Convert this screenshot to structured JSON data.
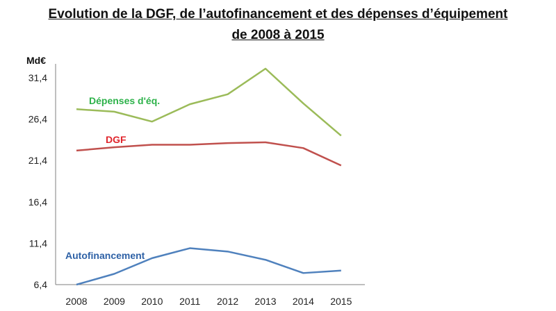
{
  "header": {
    "title_line1": "Evolution de la DGF, de l’autofinancement et des dépenses d’équipement",
    "title_line2": "de 2008 à 2015"
  },
  "chart_data": {
    "type": "line",
    "ylabel": "Md€",
    "x": [
      "2008",
      "2009",
      "2010",
      "2011",
      "2012",
      "2013",
      "2014",
      "2015"
    ],
    "y_ticks": [
      "6,4",
      "11,4",
      "16,4",
      "21,4",
      "26,4",
      "31,4"
    ],
    "ylim": [
      6.4,
      31.4
    ],
    "grid": false,
    "series": [
      {
        "name": "Dépenses d'éq.",
        "color": "#9bbb59",
        "label_color": "#2db24a",
        "values": [
          27.6,
          27.3,
          26.1,
          28.2,
          29.4,
          32.5,
          28.3,
          24.4
        ]
      },
      {
        "name": "DGF",
        "color": "#c0504d",
        "label_color": "#e0242b",
        "values": [
          22.6,
          23.0,
          23.3,
          23.3,
          23.5,
          23.6,
          22.9,
          20.8
        ]
      },
      {
        "name": "Autofinancement",
        "color": "#4f81bd",
        "label_color": "#2e61a6",
        "values": [
          6.4,
          7.7,
          9.6,
          10.8,
          10.4,
          9.4,
          7.8,
          8.1
        ]
      }
    ]
  }
}
